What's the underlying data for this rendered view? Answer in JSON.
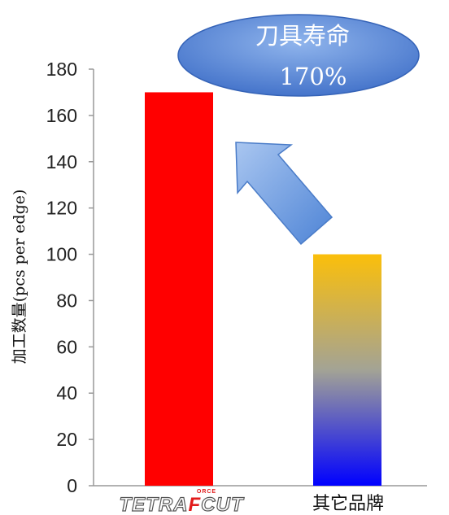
{
  "chart_data": {
    "type": "bar",
    "categories": [
      "TETRAFORCECUT",
      "其它品牌"
    ],
    "values": [
      170,
      100
    ],
    "ylabel": "加工数量(pcs per edge)",
    "ylim": [
      0,
      180
    ],
    "yticks": [
      0,
      20,
      40,
      60,
      80,
      100,
      120,
      140,
      160,
      180
    ],
    "grid": false,
    "colors": [
      "#ff0000",
      "gradient:#fbbf0a-#0000ff"
    ]
  },
  "callout": {
    "line1": "刀具寿命",
    "line2": "170%"
  },
  "logo": {
    "main_left": "TETRA",
    "main_f": "F",
    "main_right": "CUT",
    "small": "ORCE"
  },
  "second_category_label": "其它品牌"
}
